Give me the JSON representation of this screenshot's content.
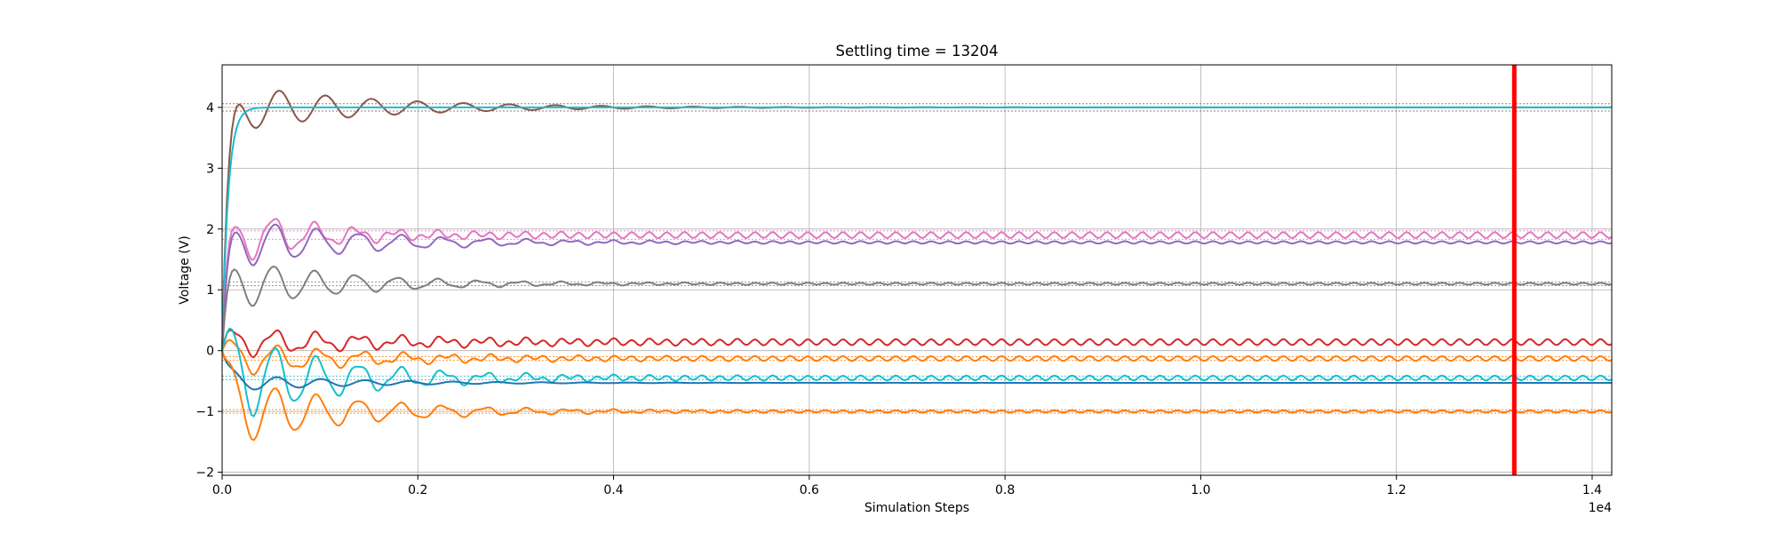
{
  "chart_data": {
    "type": "line",
    "title": "Settling time = 13204",
    "xlabel": "Simulation Steps",
    "ylabel": "Voltage (V)",
    "x_offset_label": "1e4",
    "xlim": [
      0,
      14200
    ],
    "ylim": [
      -2.05,
      4.7
    ],
    "x_ticks": [
      0,
      2000,
      4000,
      6000,
      8000,
      10000,
      12000,
      14000
    ],
    "x_tick_labels": [
      "0.0",
      "0.2",
      "0.4",
      "0.6",
      "0.8",
      "1.0",
      "1.2",
      "1.4"
    ],
    "y_ticks": [
      -2,
      -1,
      0,
      1,
      2,
      3,
      4
    ],
    "y_tick_labels": [
      "−2",
      "−1",
      "0",
      "1",
      "2",
      "3",
      "4"
    ],
    "grid": true,
    "settling_marker": {
      "x": 13204,
      "color": "#ff0000"
    },
    "series": [
      {
        "color": "#8c564b",
        "final": 4.0,
        "init": 0.0,
        "amp": 0.42,
        "decay": 1400,
        "period": 470,
        "ripple": 0.0,
        "band": 0.06
      },
      {
        "color": "#17becf",
        "final": 4.0,
        "init": 0.0,
        "amp": 0.0,
        "decay": 40,
        "period": 400,
        "ripple": 0.0,
        "band": 0.0
      },
      {
        "color": "#e377c2",
        "final": 1.9,
        "init": 0.0,
        "amp": 0.5,
        "decay": 900,
        "period": 420,
        "ripple": 0.05,
        "band": 0.07
      },
      {
        "color": "#9467bd",
        "final": 1.78,
        "init": 0.0,
        "amp": 0.45,
        "decay": 1300,
        "period": 430,
        "ripple": 0.02,
        "band": 0.0
      },
      {
        "color": "#7f7f7f",
        "final": 1.1,
        "init": 0.0,
        "amp": 0.45,
        "decay": 1200,
        "period": 420,
        "ripple": 0.015,
        "band": 0.03
      },
      {
        "color": "#d62728",
        "final": 0.14,
        "init": 0.0,
        "amp": 0.25,
        "decay": 1500,
        "period": 430,
        "ripple": 0.05,
        "band": 0.0
      },
      {
        "color": "#ff7f0e",
        "final": -0.13,
        "init": 0.0,
        "amp": 0.3,
        "decay": 1300,
        "period": 440,
        "ripple": 0.04,
        "band": 0.03
      },
      {
        "color": "#17becf",
        "final": -0.45,
        "init": 0.0,
        "amp": 0.8,
        "decay": 1100,
        "period": 430,
        "ripple": 0.04,
        "band": 0.03
      },
      {
        "color": "#1f77b4",
        "final": -0.53,
        "init": 0.0,
        "amp": 0.15,
        "decay": 1200,
        "period": 450,
        "ripple": 0.0,
        "band": 0.0
      },
      {
        "color": "#ff7f0e",
        "final": -1.0,
        "init": 0.0,
        "amp": 0.6,
        "decay": 1200,
        "period": 430,
        "ripple": 0.02,
        "band": 0.03
      }
    ]
  }
}
